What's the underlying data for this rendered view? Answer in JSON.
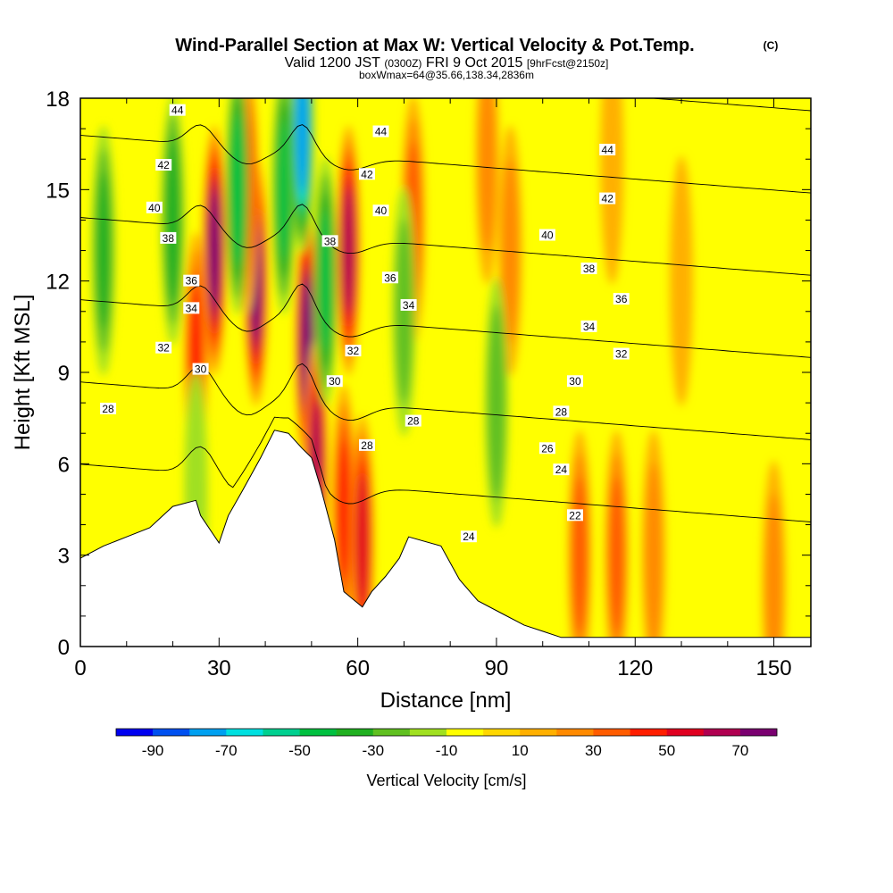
{
  "chart_data": {
    "type": "heatmap",
    "title": "Wind-Parallel Section at Max W: Vertical Velocity & Pot.Temp.",
    "title_mark": "(C)",
    "subtitle_parts": [
      "Valid 1200 JST",
      "(0300Z)",
      "FRI 9 Oct 2015",
      "[9hrFcst@2150z]"
    ],
    "subtitle2": "boxWmax=64@35.66,138.34,2836m",
    "xlabel": "Distance [nm]",
    "ylabel": "Height [Kft MSL]",
    "xlim": [
      0,
      158
    ],
    "ylim": [
      0,
      18
    ],
    "xticks": [
      0,
      30,
      60,
      90,
      120,
      150
    ],
    "xminor_step": 10,
    "yticks": [
      0,
      3,
      6,
      9,
      12,
      15,
      18
    ],
    "yminor_step": 1,
    "colorbar": {
      "label": "Vertical Velocity [cm/s]",
      "bounds": [
        -100,
        80
      ],
      "step": 10,
      "tick_values": [
        -90,
        -70,
        -50,
        -30,
        -10,
        10,
        30,
        50,
        70
      ],
      "colors": [
        "#0000f0",
        "#0050f0",
        "#00a0f0",
        "#00e0e0",
        "#00d090",
        "#00c040",
        "#20b020",
        "#60c020",
        "#a0e020",
        "#ffff00",
        "#ffd700",
        "#ffb000",
        "#ff8a00",
        "#ff5c00",
        "#ff1e00",
        "#e00020",
        "#b00050",
        "#7a0070"
      ]
    },
    "terrain_profile": [
      [
        0,
        2.9
      ],
      [
        5,
        3.3
      ],
      [
        10,
        3.6
      ],
      [
        15,
        3.9
      ],
      [
        20,
        4.6
      ],
      [
        25,
        4.8
      ],
      [
        26,
        4.3
      ],
      [
        30,
        3.4
      ],
      [
        32,
        4.3
      ],
      [
        35,
        5.1
      ],
      [
        39,
        6.2
      ],
      [
        42,
        7.1
      ],
      [
        45,
        7.0
      ],
      [
        48,
        6.5
      ],
      [
        50,
        6.2
      ],
      [
        52,
        5.2
      ],
      [
        55,
        3.5
      ],
      [
        57,
        1.8
      ],
      [
        61,
        1.3
      ],
      [
        63,
        1.8
      ],
      [
        66,
        2.3
      ],
      [
        69,
        2.9
      ],
      [
        71,
        3.6
      ],
      [
        78,
        3.3
      ],
      [
        82,
        2.2
      ],
      [
        86,
        1.5
      ],
      [
        91,
        1.1
      ],
      [
        96,
        0.7
      ],
      [
        100,
        0.5
      ],
      [
        104,
        0.3
      ],
      [
        106,
        0.3
      ],
      [
        110,
        0.3
      ],
      [
        158,
        0.3
      ]
    ],
    "velocity_features": [
      {
        "x": 29,
        "y": 13,
        "w": 70
      },
      {
        "x": 25,
        "y": 9.5,
        "w": 40
      },
      {
        "x": 38,
        "y": 12,
        "w": 70
      },
      {
        "x": 36,
        "y": 15,
        "w": 40
      },
      {
        "x": 49,
        "y": 10,
        "w": 75
      },
      {
        "x": 51,
        "y": 6,
        "w": 60
      },
      {
        "x": 57,
        "y": 4.5,
        "w": 40
      },
      {
        "x": 61,
        "y": 3.5,
        "w": 50
      },
      {
        "x": 58,
        "y": 13,
        "w": 60
      },
      {
        "x": 72,
        "y": 14,
        "w": 30
      },
      {
        "x": 88,
        "y": 16,
        "w": 20
      },
      {
        "x": 93,
        "y": 13,
        "w": 20
      },
      {
        "x": 115,
        "y": 16,
        "w": 15
      },
      {
        "x": 130,
        "y": 12,
        "w": 15
      },
      {
        "x": 108,
        "y": 3,
        "w": 30
      },
      {
        "x": 116,
        "y": 3,
        "w": 30
      },
      {
        "x": 124,
        "y": 3,
        "w": 20
      },
      {
        "x": 150,
        "y": 2,
        "w": 20
      },
      {
        "x": 20,
        "y": 14,
        "w": -35
      },
      {
        "x": 34,
        "y": 15,
        "w": -45
      },
      {
        "x": 44,
        "y": 15,
        "w": -40
      },
      {
        "x": 48,
        "y": 17,
        "w": -75
      },
      {
        "x": 53,
        "y": 12,
        "w": -40
      },
      {
        "x": 70,
        "y": 11,
        "w": -20
      },
      {
        "x": 90,
        "y": 8,
        "w": -25
      },
      {
        "x": 5,
        "y": 13,
        "w": -30
      },
      {
        "x": 25,
        "y": 5,
        "w": -15
      }
    ],
    "theta_levels": [
      22,
      24,
      26,
      28,
      30,
      32,
      34,
      36,
      38,
      40,
      42,
      44
    ],
    "contour_labels": [
      {
        "text": "44",
        "x": 21,
        "y": 17.6
      },
      {
        "text": "42",
        "x": 18,
        "y": 15.8
      },
      {
        "text": "40",
        "x": 16,
        "y": 14.4
      },
      {
        "text": "38",
        "x": 19,
        "y": 13.4
      },
      {
        "text": "36",
        "x": 24,
        "y": 12.0
      },
      {
        "text": "34",
        "x": 24,
        "y": 11.1
      },
      {
        "text": "32",
        "x": 18,
        "y": 9.8
      },
      {
        "text": "30",
        "x": 26,
        "y": 9.1
      },
      {
        "text": "28",
        "x": 6,
        "y": 7.8
      },
      {
        "text": "44",
        "x": 65,
        "y": 16.9
      },
      {
        "text": "42",
        "x": 62,
        "y": 15.5
      },
      {
        "text": "40",
        "x": 65,
        "y": 14.3
      },
      {
        "text": "38",
        "x": 54,
        "y": 13.3
      },
      {
        "text": "36",
        "x": 67,
        "y": 12.1
      },
      {
        "text": "34",
        "x": 71,
        "y": 11.2
      },
      {
        "text": "32",
        "x": 59,
        "y": 9.7
      },
      {
        "text": "30",
        "x": 55,
        "y": 8.7
      },
      {
        "text": "28",
        "x": 62,
        "y": 6.6
      },
      {
        "text": "28",
        "x": 72,
        "y": 7.4
      },
      {
        "text": "24",
        "x": 84,
        "y": 3.6
      },
      {
        "text": "44",
        "x": 114,
        "y": 16.3
      },
      {
        "text": "42",
        "x": 114,
        "y": 14.7
      },
      {
        "text": "40",
        "x": 101,
        "y": 13.5
      },
      {
        "text": "38",
        "x": 110,
        "y": 12.4
      },
      {
        "text": "36",
        "x": 117,
        "y": 11.4
      },
      {
        "text": "34",
        "x": 110,
        "y": 10.5
      },
      {
        "text": "32",
        "x": 117,
        "y": 9.6
      },
      {
        "text": "30",
        "x": 107,
        "y": 8.7
      },
      {
        "text": "28",
        "x": 104,
        "y": 7.7
      },
      {
        "text": "26",
        "x": 101,
        "y": 6.5
      },
      {
        "text": "24",
        "x": 104,
        "y": 5.8
      },
      {
        "text": "22",
        "x": 107,
        "y": 4.3
      }
    ]
  }
}
